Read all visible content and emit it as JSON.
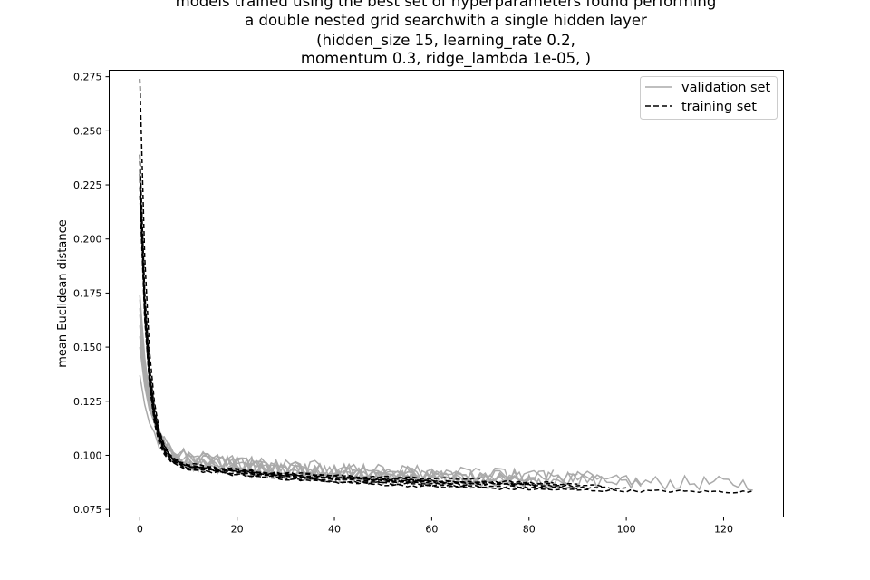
{
  "chart_data": {
    "type": "line",
    "title_lines": [
      "models trained using the best set of hyperparameters found performing",
      "a double nested grid searchwith a single hidden layer",
      "(hidden_size 15, learning_rate 0.2,",
      "momentum 0.3, ridge_lambda 1e-05, )"
    ],
    "xlabel": "",
    "ylabel": "mean Euclidean distance",
    "xlim": [
      -6.3,
      132.3
    ],
    "ylim": [
      0.0715,
      0.278
    ],
    "x_ticks": [
      0,
      20,
      40,
      60,
      80,
      100,
      120
    ],
    "y_ticks": [
      0.075,
      0.1,
      0.125,
      0.15,
      0.175,
      0.2,
      0.225,
      0.25,
      0.275
    ],
    "grid": false,
    "legend": {
      "position": "top-right",
      "entries": [
        {
          "label": "validation set",
          "color": "#aaaaaa",
          "dash": "solid"
        },
        {
          "label": "training set",
          "color": "#000000",
          "dash": "dashed"
        }
      ]
    },
    "colors": {
      "validation": "#aaaaaa",
      "training": "#000000"
    },
    "runs": [
      {
        "validation": {
          "start": 0.168,
          "floor": 0.0875,
          "tau": 2.0,
          "tail": 0.012,
          "tau2": 30,
          "noise": 0.005,
          "len": 80
        },
        "training": {
          "start": 0.274,
          "floor": 0.0855,
          "tau": 1.6,
          "tail": 0.013,
          "tau2": 35,
          "len": 80
        }
      },
      {
        "validation": {
          "start": 0.137,
          "floor": 0.089,
          "tau": 2.2,
          "tail": 0.012,
          "tau2": 30,
          "noise": 0.005,
          "len": 60
        },
        "training": {
          "start": 0.239,
          "floor": 0.0865,
          "tau": 1.7,
          "tail": 0.012,
          "tau2": 30,
          "len": 60
        }
      },
      {
        "validation": {
          "start": 0.155,
          "floor": 0.0885,
          "tau": 2.1,
          "tail": 0.013,
          "tau2": 32,
          "noise": 0.005,
          "len": 95
        },
        "training": {
          "start": 0.232,
          "floor": 0.085,
          "tau": 1.7,
          "tail": 0.012,
          "tau2": 35,
          "len": 95
        }
      },
      {
        "validation": {
          "start": 0.16,
          "floor": 0.0865,
          "tau": 2.0,
          "tail": 0.014,
          "tau2": 38,
          "noise": 0.005,
          "len": 126
        },
        "training": {
          "start": 0.224,
          "floor": 0.0825,
          "tau": 1.6,
          "tail": 0.014,
          "tau2": 40,
          "len": 126
        }
      },
      {
        "validation": {
          "start": 0.15,
          "floor": 0.09,
          "tau": 2.2,
          "tail": 0.012,
          "tau2": 30,
          "noise": 0.005,
          "len": 70
        },
        "training": {
          "start": 0.23,
          "floor": 0.088,
          "tau": 1.7,
          "tail": 0.01,
          "tau2": 30,
          "len": 70
        }
      },
      {
        "validation": {
          "start": 0.165,
          "floor": 0.087,
          "tau": 2.0,
          "tail": 0.014,
          "tau2": 35,
          "noise": 0.005,
          "len": 103
        },
        "training": {
          "start": 0.236,
          "floor": 0.084,
          "tau": 1.7,
          "tail": 0.013,
          "tau2": 35,
          "len": 100
        }
      },
      {
        "validation": {
          "start": 0.174,
          "floor": 0.089,
          "tau": 2.0,
          "tail": 0.013,
          "tau2": 34,
          "noise": 0.005,
          "len": 85
        },
        "training": {
          "start": 0.22,
          "floor": 0.086,
          "tau": 1.6,
          "tail": 0.013,
          "tau2": 36,
          "len": 85
        }
      },
      {
        "validation": {
          "start": 0.172,
          "floor": 0.088,
          "tau": 2.1,
          "tail": 0.012,
          "tau2": 32,
          "noise": 0.005,
          "len": 90
        },
        "training": {
          "start": 0.228,
          "floor": 0.0855,
          "tau": 1.6,
          "tail": 0.012,
          "tau2": 35,
          "len": 90
        }
      }
    ]
  }
}
